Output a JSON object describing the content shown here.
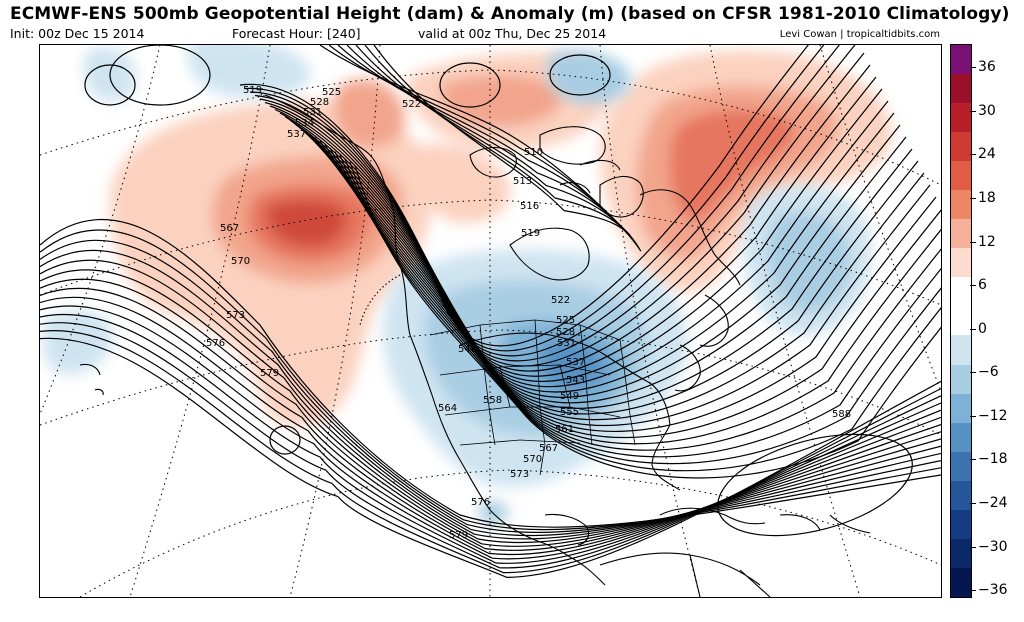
{
  "header": {
    "title": "ECMWF-ENS 500mb Geopotential Height (dam) & Anomaly (m) (based on CFSR 1981-2010 Climatology)",
    "init": "Init: 00z Dec 15 2014",
    "forecast_hour": "Forecast Hour: [240]",
    "valid": "valid at 00z Thu, Dec 25 2014",
    "credit": "Levi Cowan | tropicaltidbits.com"
  },
  "colorbar": {
    "labels": [
      "36",
      "30",
      "24",
      "18",
      "12",
      "6",
      "0",
      "−6",
      "−12",
      "−18",
      "−24",
      "−30",
      "−36"
    ],
    "colors": [
      "#7a1075",
      "#9b0f2a",
      "#b81f2a",
      "#cf3a35",
      "#e05c45",
      "#ee8665",
      "#f6b19a",
      "#fddccf",
      "#ffffff",
      "#ffffff",
      "#d0e4f0",
      "#a9cde3",
      "#7db1d5",
      "#5692c4",
      "#3b73b0",
      "#26569a",
      "#153c80",
      "#0b2868",
      "#061650"
    ]
  },
  "contour_labels": [
    "519",
    "525",
    "528",
    "531",
    "534",
    "537",
    "522",
    "510",
    "513",
    "516",
    "519",
    "567",
    "570",
    "573",
    "576",
    "579",
    "522",
    "525",
    "528",
    "531",
    "546",
    "537",
    "543",
    "549",
    "555",
    "561",
    "564",
    "558",
    "567",
    "570",
    "573",
    "576",
    "579",
    "588"
  ]
}
